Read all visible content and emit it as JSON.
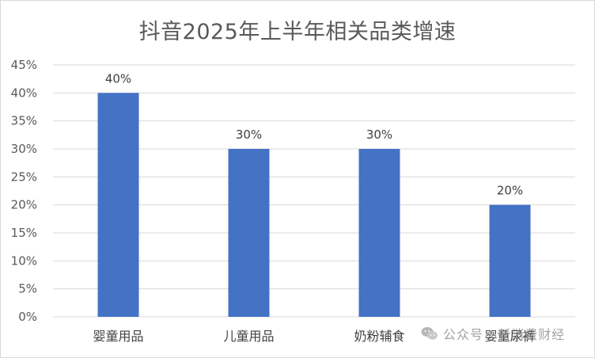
{
  "chart_data": {
    "type": "bar",
    "title": "抖音2025年上半年相关品类增速",
    "categories": [
      "婴童用品",
      "儿童用品",
      "奶粉辅食",
      "婴童尿裤"
    ],
    "values": [
      0.4,
      0.3,
      0.3,
      0.2
    ],
    "data_labels": [
      "40%",
      "30%",
      "30%",
      "20%"
    ],
    "ylim": [
      0,
      0.45
    ],
    "y_ticks": [
      0,
      0.05,
      0.1,
      0.15,
      0.2,
      0.25,
      0.3,
      0.35,
      0.4,
      0.45
    ],
    "y_tick_labels": [
      "0%",
      "5%",
      "10%",
      "15%",
      "20%",
      "25%",
      "30%",
      "35%",
      "40%",
      "45%"
    ],
    "grid": true,
    "legend": "none",
    "bar_color": "#4472C4",
    "grid_color": "#d9d9d9"
  },
  "watermark": {
    "icon": "wechat-icon",
    "text": "公众号 · 新消费财经"
  }
}
